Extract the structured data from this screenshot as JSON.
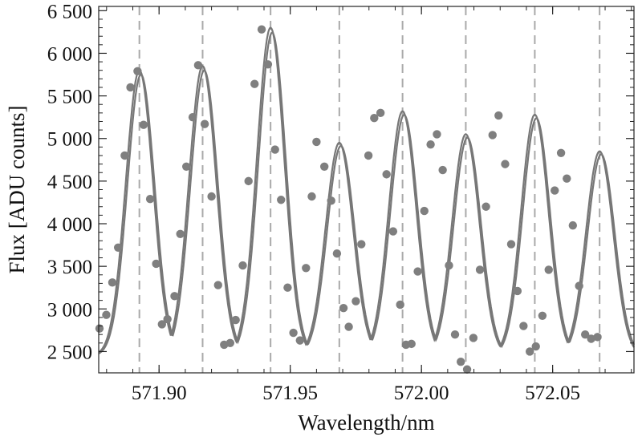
{
  "chart_data": {
    "type": "scatter",
    "title": "",
    "xlabel": "Wavelength/nm",
    "ylabel": "Flux [ADU counts]",
    "xlim": [
      571.877,
      572.081
    ],
    "ylim": [
      2250,
      6550
    ],
    "x_ticks": [
      571.9,
      571.95,
      572.0,
      572.05
    ],
    "x_tick_labels": [
      "571.90",
      "571.95",
      "572.00",
      "572.05"
    ],
    "y_ticks": [
      2500,
      3000,
      3500,
      4000,
      4500,
      5000,
      5500,
      6000,
      6500
    ],
    "y_tick_labels": [
      "2 500",
      "3 000",
      "3 500",
      "4 000",
      "4 500",
      "5 000",
      "5 500",
      "6 000",
      "6 500"
    ],
    "grid": false,
    "legend": "none",
    "colors": {
      "points": "#7f7f7f",
      "fit_line": "#777777",
      "marker_lines": "#a9a9a9",
      "axes": "#222222"
    },
    "peak_markers_x": [
      571.8925,
      571.9166,
      571.9425,
      571.9687,
      571.9928,
      572.0169,
      572.0432,
      572.0679
    ],
    "peaks": [
      {
        "center": 571.8925,
        "amplitude": 5800,
        "sigma": 0.0052
      },
      {
        "center": 571.9166,
        "amplitude": 5850,
        "sigma": 0.0052
      },
      {
        "center": 571.9425,
        "amplitude": 6300,
        "sigma": 0.0052
      },
      {
        "center": 571.9687,
        "amplitude": 4950,
        "sigma": 0.0052
      },
      {
        "center": 571.9928,
        "amplitude": 5320,
        "sigma": 0.0052
      },
      {
        "center": 572.0169,
        "amplitude": 5050,
        "sigma": 0.0052
      },
      {
        "center": 572.0432,
        "amplitude": 5280,
        "sigma": 0.0052
      },
      {
        "center": 572.0679,
        "amplitude": 4850,
        "sigma": 0.0052
      }
    ],
    "baseline": 2450,
    "points": [
      {
        "x": 571.8773,
        "y": 2770
      },
      {
        "x": 571.8799,
        "y": 2930
      },
      {
        "x": 571.8822,
        "y": 3310
      },
      {
        "x": 571.8844,
        "y": 3720
      },
      {
        "x": 571.8869,
        "y": 4800
      },
      {
        "x": 571.8891,
        "y": 5600
      },
      {
        "x": 571.8918,
        "y": 5790
      },
      {
        "x": 571.8941,
        "y": 5160
      },
      {
        "x": 571.8966,
        "y": 4290
      },
      {
        "x": 571.8989,
        "y": 3530
      },
      {
        "x": 571.9011,
        "y": 2820
      },
      {
        "x": 571.9032,
        "y": 2880
      },
      {
        "x": 571.9059,
        "y": 3150
      },
      {
        "x": 571.9081,
        "y": 3880
      },
      {
        "x": 571.9104,
        "y": 4670
      },
      {
        "x": 571.9128,
        "y": 5250
      },
      {
        "x": 571.9149,
        "y": 5860
      },
      {
        "x": 571.9174,
        "y": 5170
      },
      {
        "x": 571.92,
        "y": 4320
      },
      {
        "x": 571.9225,
        "y": 3280
      },
      {
        "x": 571.9248,
        "y": 2580
      },
      {
        "x": 571.9271,
        "y": 2600
      },
      {
        "x": 571.9292,
        "y": 2870
      },
      {
        "x": 571.9319,
        "y": 3510
      },
      {
        "x": 571.9341,
        "y": 4500
      },
      {
        "x": 571.9364,
        "y": 5640
      },
      {
        "x": 571.9391,
        "y": 6280
      },
      {
        "x": 571.9415,
        "y": 5870
      },
      {
        "x": 571.9442,
        "y": 4870
      },
      {
        "x": 571.9465,
        "y": 4280
      },
      {
        "x": 571.949,
        "y": 3250
      },
      {
        "x": 571.9512,
        "y": 2720
      },
      {
        "x": 571.9537,
        "y": 2630
      },
      {
        "x": 571.956,
        "y": 3480
      },
      {
        "x": 571.9582,
        "y": 4320
      },
      {
        "x": 571.96,
        "y": 4960
      },
      {
        "x": 571.963,
        "y": 4670
      },
      {
        "x": 571.9656,
        "y": 4270
      },
      {
        "x": 571.9678,
        "y": 3650
      },
      {
        "x": 571.9703,
        "y": 3010
      },
      {
        "x": 571.9723,
        "y": 2790
      },
      {
        "x": 571.975,
        "y": 3090
      },
      {
        "x": 571.9771,
        "y": 3760
      },
      {
        "x": 571.9798,
        "y": 4800
      },
      {
        "x": 571.982,
        "y": 5240
      },
      {
        "x": 571.9844,
        "y": 5300
      },
      {
        "x": 571.9867,
        "y": 4580
      },
      {
        "x": 571.9892,
        "y": 3910
      },
      {
        "x": 571.9919,
        "y": 3050
      },
      {
        "x": 571.9941,
        "y": 2580
      },
      {
        "x": 571.9962,
        "y": 2590
      },
      {
        "x": 571.9986,
        "y": 3440
      },
      {
        "x": 572.0011,
        "y": 4150
      },
      {
        "x": 572.0035,
        "y": 4930
      },
      {
        "x": 572.0059,
        "y": 5050
      },
      {
        "x": 572.0081,
        "y": 4630
      },
      {
        "x": 572.0105,
        "y": 3510
      },
      {
        "x": 572.0128,
        "y": 2700
      },
      {
        "x": 572.015,
        "y": 2380
      },
      {
        "x": 572.0174,
        "y": 2290
      },
      {
        "x": 572.0198,
        "y": 2660
      },
      {
        "x": 572.0223,
        "y": 3460
      },
      {
        "x": 572.0246,
        "y": 4200
      },
      {
        "x": 572.0271,
        "y": 5040
      },
      {
        "x": 572.0294,
        "y": 5270
      },
      {
        "x": 572.0319,
        "y": 4700
      },
      {
        "x": 572.0342,
        "y": 3760
      },
      {
        "x": 572.0366,
        "y": 3210
      },
      {
        "x": 572.0389,
        "y": 2800
      },
      {
        "x": 572.0413,
        "y": 2500
      },
      {
        "x": 572.0436,
        "y": 2560
      },
      {
        "x": 572.0461,
        "y": 2920
      },
      {
        "x": 572.0485,
        "y": 3460
      },
      {
        "x": 572.0508,
        "y": 4390
      },
      {
        "x": 572.0532,
        "y": 4830
      },
      {
        "x": 572.0554,
        "y": 4530
      },
      {
        "x": 572.0577,
        "y": 3980
      },
      {
        "x": 572.0601,
        "y": 3270
      },
      {
        "x": 572.0624,
        "y": 2700
      },
      {
        "x": 572.0647,
        "y": 2650
      },
      {
        "x": 572.0671,
        "y": 2670
      }
    ]
  }
}
